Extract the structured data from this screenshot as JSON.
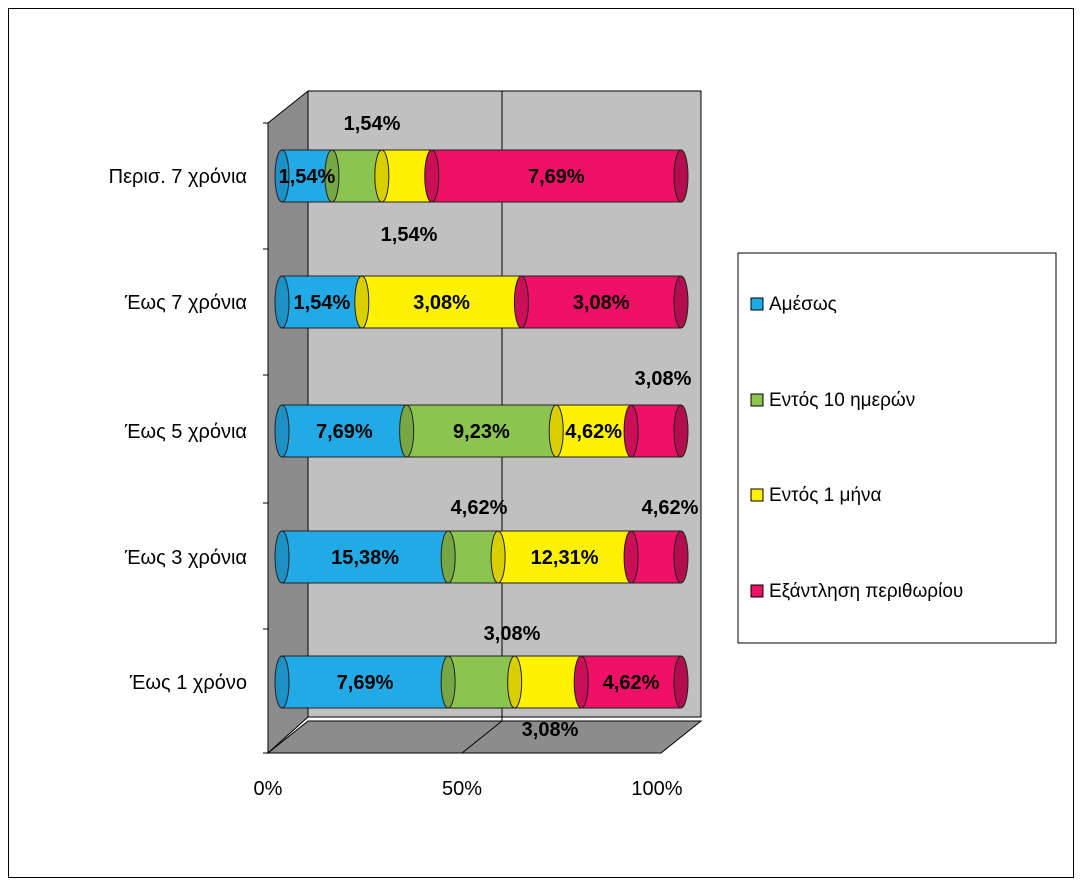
{
  "chart_data": {
    "type": "bar",
    "orientation": "horizontal",
    "stacked": "percent",
    "three_d": true,
    "categories": [
      "Έως 1 χρόνο",
      "Έως 3 χρόνια",
      "Έως 5 χρόνια",
      "Έως 7 χρόνια",
      "Περισ. 7 χρόνια"
    ],
    "series": [
      {
        "name": "Αμέσως",
        "color": "#22aae6",
        "values": [
          7.69,
          15.38,
          7.69,
          1.54,
          1.54
        ],
        "labels": [
          "7,69%",
          "15,38%",
          "7,69%",
          "1,54%",
          "1,54%"
        ]
      },
      {
        "name": "Εντός 10 ημερών",
        "color": "#8cc450",
        "values": [
          3.08,
          4.62,
          9.23,
          0,
          1.54
        ],
        "labels": [
          "3,08%",
          "4,62%",
          "9,23%",
          "",
          "1,54%"
        ]
      },
      {
        "name": "Εντός 1 μήνα",
        "color": "#fff200",
        "values": [
          3.08,
          12.31,
          4.62,
          3.08,
          1.54
        ],
        "labels": [
          "3,08%",
          "12,31%",
          "4,62%",
          "3,08%",
          "1,54%"
        ]
      },
      {
        "name": "Εξάντληση περιθωρίου",
        "color": "#ee1166",
        "values": [
          4.62,
          4.62,
          3.08,
          3.08,
          7.69
        ],
        "labels": [
          "4,62%",
          "4,62%",
          "3,08%",
          "3,08%",
          "7,69%"
        ]
      }
    ],
    "x_ticks": [
      "0%",
      "50%",
      "100%"
    ],
    "xlim": [
      0,
      100
    ],
    "grid": true,
    "legend_position": "right"
  }
}
